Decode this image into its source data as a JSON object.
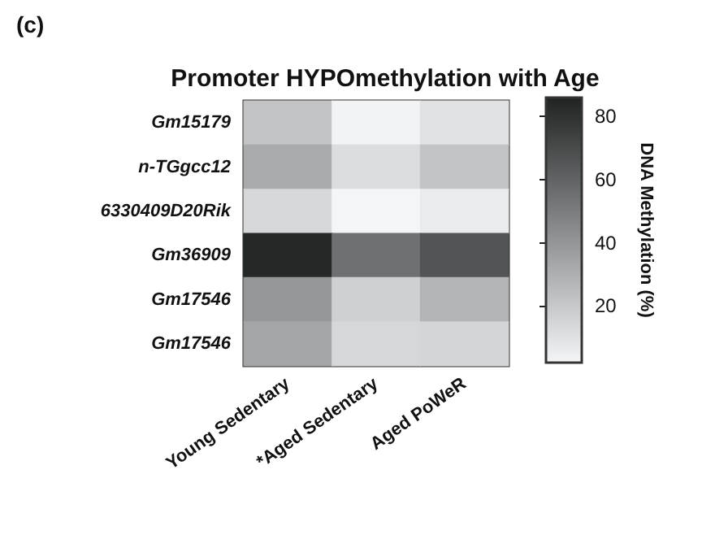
{
  "chart_data": {
    "type": "heatmap",
    "title": "Promoter HYPOmethylation with Age",
    "annotations": [
      "(c)"
    ],
    "categories": [
      "Young Sedentary",
      "*Aged Sedentary",
      "Aged PoWeR"
    ],
    "y_categories": [
      "Gm15179",
      "n-TGgcc12",
      "6330409D20Rik",
      "Gm36909",
      "Gm17546",
      "Gm17546"
    ],
    "cells": [
      [
        22,
        3,
        10
      ],
      [
        32,
        12,
        22
      ],
      [
        14,
        2,
        6
      ],
      [
        84,
        55,
        66
      ],
      [
        40,
        17,
        28
      ],
      [
        34,
        14,
        15
      ]
    ],
    "clabel": "DNA Methylation (%)",
    "clim": [
      2,
      86
    ],
    "cticks": [
      20,
      40,
      60,
      80
    ],
    "colors": [
      "#f4f5f7",
      "#1f2322"
    ]
  }
}
